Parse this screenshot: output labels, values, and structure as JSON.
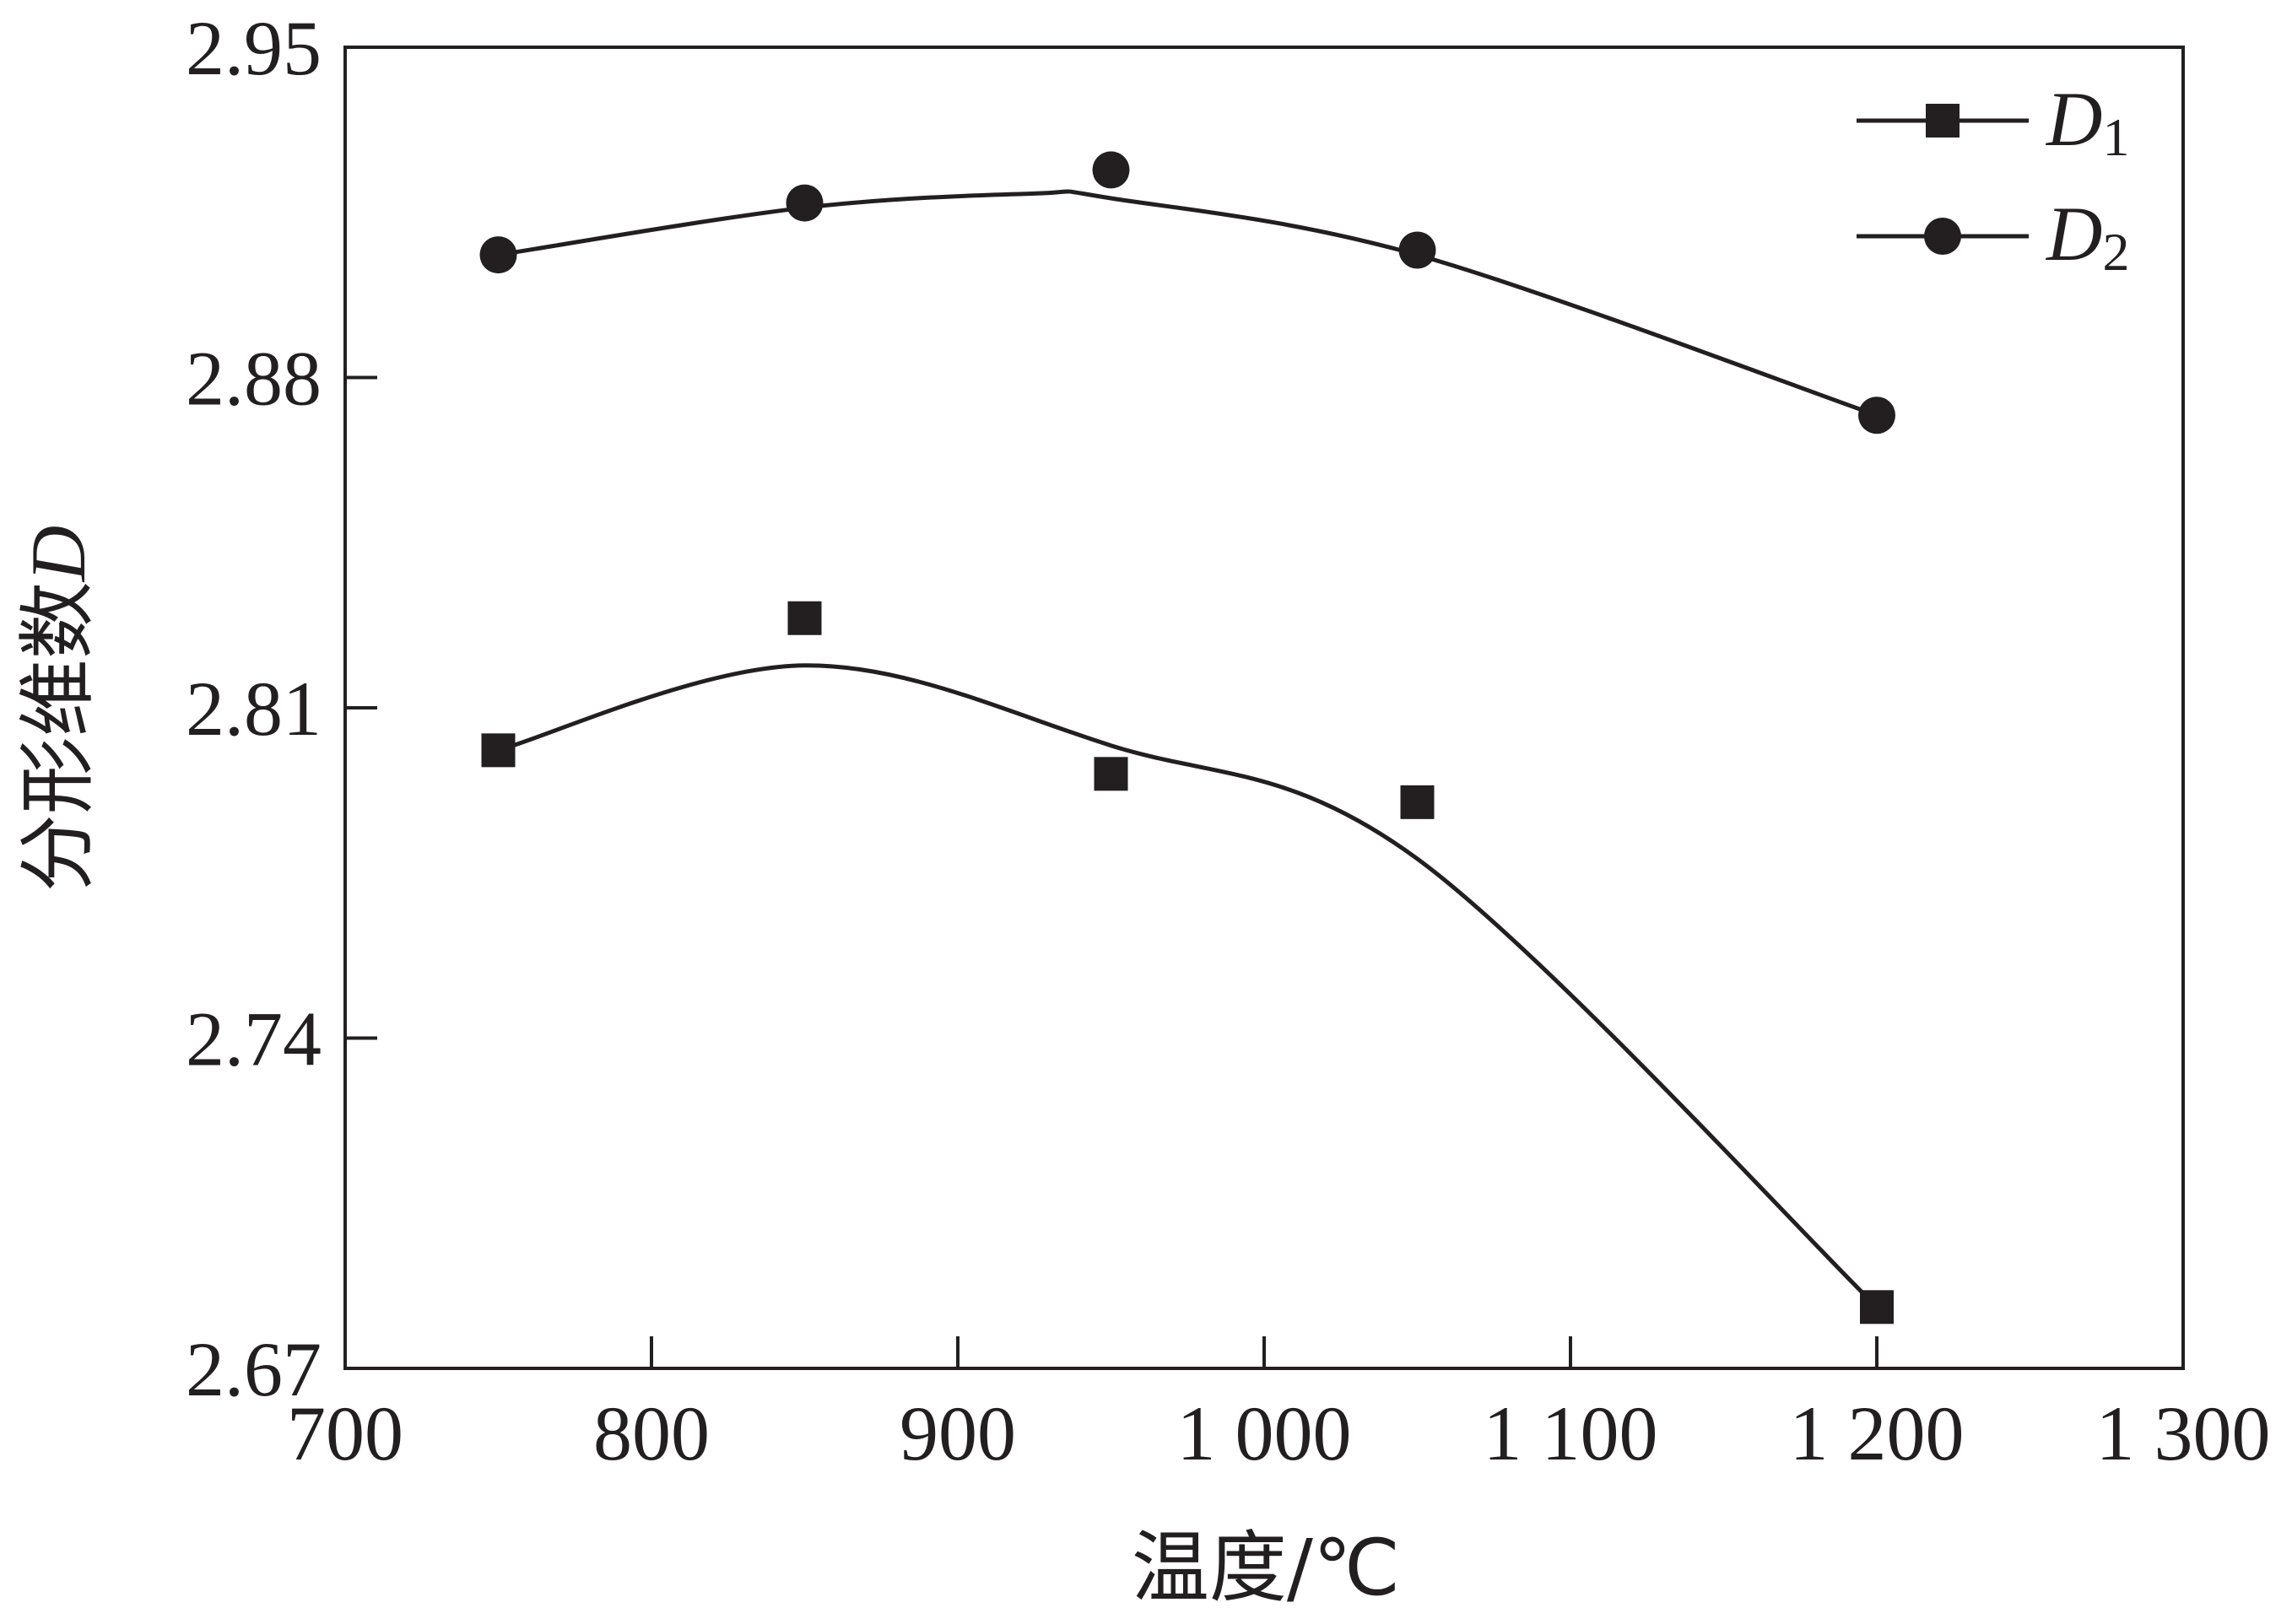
{
  "chart_data": {
    "type": "line",
    "title": "",
    "xlabel": "温度/℃",
    "ylabel_text": "分形维数",
    "ylabel_symbol": "D",
    "xlim": [
      700,
      1300
    ],
    "ylim": [
      2.67,
      2.95
    ],
    "xticks": [
      700,
      800,
      900,
      1000,
      1100,
      1200,
      1300
    ],
    "xtick_labels": [
      "700",
      "800",
      "900",
      "1 000",
      "1 100",
      "1 200",
      "1 300"
    ],
    "yticks": [
      2.67,
      2.74,
      2.81,
      2.88,
      2.95
    ],
    "ytick_labels": [
      "2.67",
      "2.74",
      "2.81",
      "2.88",
      "2.95"
    ],
    "grid": false,
    "legend_position": "top-right",
    "series": [
      {
        "name_main": "D",
        "name_sub": "1",
        "marker": "square",
        "x": [
          750,
          850,
          950,
          1050,
          1200
        ],
        "y": [
          2.801,
          2.829,
          2.796,
          2.79,
          2.683
        ]
      },
      {
        "name_main": "D",
        "name_sub": "2",
        "marker": "circle",
        "x": [
          750,
          850,
          950,
          1050,
          1200
        ],
        "y": [
          2.906,
          2.917,
          2.924,
          2.907,
          2.872
        ]
      }
    ],
    "fit_curves": [
      {
        "x": [
          750,
          850,
          950,
          1050,
          1200
        ],
        "y": [
          2.801,
          2.819,
          2.802,
          2.778,
          2.683
        ]
      },
      {
        "x": [
          750,
          850,
          925,
          950,
          1050,
          1200
        ],
        "y": [
          2.906,
          2.916,
          2.919,
          2.918,
          2.906,
          2.872
        ]
      }
    ],
    "colors": {
      "ink": "#231f20"
    }
  }
}
